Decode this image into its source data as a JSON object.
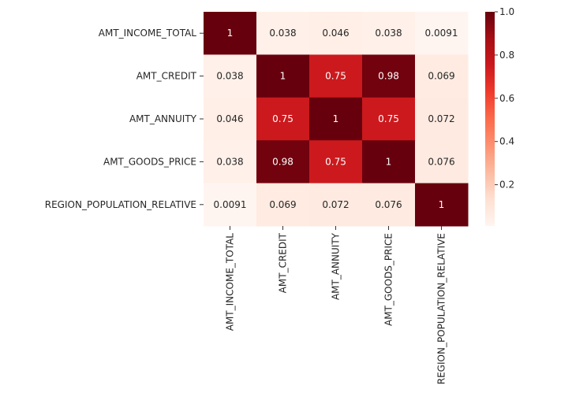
{
  "chart_data": {
    "type": "heatmap",
    "title": "",
    "row_labels": [
      "AMT_INCOME_TOTAL",
      "AMT_CREDIT",
      "AMT_ANNUITY",
      "AMT_GOODS_PRICE",
      "REGION_POPULATION_RELATIVE"
    ],
    "col_labels": [
      "AMT_INCOME_TOTAL",
      "AMT_CREDIT",
      "AMT_ANNUITY",
      "AMT_GOODS_PRICE",
      "REGION_POPULATION_RELATIVE"
    ],
    "values": [
      [
        1,
        0.038,
        0.046,
        0.038,
        0.0091
      ],
      [
        0.038,
        1,
        0.75,
        0.98,
        0.069
      ],
      [
        0.046,
        0.75,
        1,
        0.75,
        0.072
      ],
      [
        0.038,
        0.98,
        0.75,
        1,
        0.076
      ],
      [
        0.0091,
        0.069,
        0.072,
        0.076,
        1
      ]
    ],
    "annotations": [
      [
        "1",
        "0.038",
        "0.046",
        "0.038",
        "0.0091"
      ],
      [
        "0.038",
        "1",
        "0.75",
        "0.98",
        "0.069"
      ],
      [
        "0.046",
        "0.75",
        "1",
        "0.75",
        "0.072"
      ],
      [
        "0.038",
        "0.98",
        "0.75",
        "1",
        "0.076"
      ],
      [
        "0.0091",
        "0.069",
        "0.072",
        "0.076",
        "1"
      ]
    ],
    "colormap": "Reds",
    "colormap_stops": [
      "#fff5f0",
      "#fee0d2",
      "#fcbba1",
      "#fc9272",
      "#fb6a4a",
      "#ef3b2c",
      "#cb181d",
      "#a50f15",
      "#67000d"
    ],
    "vmin": 0.0091,
    "vmax": 1.0,
    "colorbar": {
      "ticks": [
        0.2,
        0.4,
        0.6,
        0.8,
        1.0
      ],
      "tick_labels": [
        "0.2",
        "0.4",
        "0.6",
        "0.8",
        "1.0"
      ],
      "position": "right"
    }
  }
}
